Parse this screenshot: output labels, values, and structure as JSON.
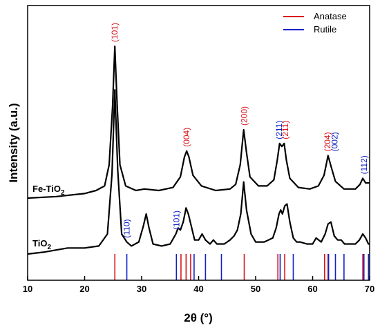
{
  "chart_data": {
    "type": "line",
    "xlabel": "2θ (°)",
    "ylabel": "Intensity (a.u.)",
    "xlim": [
      10,
      70
    ],
    "xticks": [
      "10",
      "20",
      "30",
      "40",
      "50",
      "60",
      "70"
    ],
    "y_ticks": "none",
    "grid": false,
    "legend_position": "top-right",
    "colors": {
      "anatase": "#d8141c",
      "rutile": "#1020c8",
      "curve": "#000000"
    },
    "series": [
      {
        "name": "Fe-TiO2",
        "x": [
          10,
          15,
          20,
          22,
          23.5,
          24.3,
          24.9,
          25.3,
          25.7,
          26.2,
          27.2,
          29,
          30.5,
          33,
          35.5,
          36.8,
          37.5,
          37.9,
          38.3,
          39,
          40.5,
          43,
          45.5,
          46.5,
          47.3,
          47.9,
          48.4,
          49,
          50.5,
          52,
          53.2,
          53.8,
          54.2,
          54.6,
          55.0,
          55.4,
          56,
          57.5,
          59.5,
          61,
          62,
          62.7,
          63.3,
          64,
          65.5,
          67.5,
          68.3,
          68.8,
          69.3,
          70
        ],
        "y": [
          0.0,
          0.01,
          0.03,
          0.05,
          0.08,
          0.22,
          0.6,
          1.0,
          0.62,
          0.22,
          0.08,
          0.05,
          0.06,
          0.05,
          0.07,
          0.14,
          0.27,
          0.31,
          0.27,
          0.15,
          0.08,
          0.05,
          0.06,
          0.09,
          0.22,
          0.45,
          0.3,
          0.14,
          0.08,
          0.08,
          0.12,
          0.25,
          0.36,
          0.34,
          0.36,
          0.25,
          0.13,
          0.07,
          0.06,
          0.08,
          0.15,
          0.28,
          0.2,
          0.11,
          0.06,
          0.06,
          0.09,
          0.13,
          0.1,
          0.1
        ]
      },
      {
        "name": "TiO2",
        "x": [
          10,
          13,
          17,
          20,
          22.5,
          24,
          24.8,
          25.3,
          25.8,
          26.5,
          27.4,
          28.2,
          29.5,
          30.3,
          30.8,
          31.3,
          32,
          33.5,
          35,
          36,
          36.4,
          36.8,
          37.3,
          37.8,
          38.2,
          38.7,
          39.3,
          40,
          40.6,
          41.2,
          42,
          42.6,
          43.2,
          44.5,
          45.5,
          46.2,
          46.8,
          47.4,
          47.9,
          48.4,
          49.2,
          50,
          51.5,
          53,
          53.6,
          54.1,
          54.4,
          54.7,
          55.1,
          55.5,
          56,
          56.6,
          57.2,
          57.8,
          59,
          60,
          60.6,
          61.5,
          62.2,
          62.7,
          63.2,
          63.8,
          64.4,
          65,
          65.6,
          66.5,
          67.5,
          68.2,
          68.8,
          69.3,
          69.8,
          70
        ],
        "y": [
          0.0,
          0.01,
          0.03,
          0.03,
          0.04,
          0.1,
          0.4,
          0.82,
          0.42,
          0.1,
          0.06,
          0.04,
          0.06,
          0.14,
          0.2,
          0.13,
          0.05,
          0.04,
          0.05,
          0.1,
          0.13,
          0.12,
          0.16,
          0.23,
          0.2,
          0.14,
          0.07,
          0.07,
          0.1,
          0.07,
          0.05,
          0.07,
          0.05,
          0.05,
          0.07,
          0.09,
          0.12,
          0.2,
          0.36,
          0.22,
          0.1,
          0.06,
          0.06,
          0.08,
          0.13,
          0.2,
          0.22,
          0.2,
          0.24,
          0.25,
          0.16,
          0.08,
          0.06,
          0.06,
          0.05,
          0.05,
          0.08,
          0.06,
          0.1,
          0.15,
          0.16,
          0.09,
          0.07,
          0.07,
          0.05,
          0.05,
          0.05,
          0.07,
          0.1,
          0.08,
          0.05,
          0.05
        ]
      }
    ],
    "sample_labels": [
      {
        "text": "Fe-TiO",
        "sub": "2",
        "series": "Fe-TiO2"
      },
      {
        "text": "TiO",
        "sub": "2",
        "series": "TiO2"
      }
    ],
    "legend": [
      {
        "label": "Anatase",
        "color": "#d8141c"
      },
      {
        "label": "Rutile",
        "color": "#1020c8"
      }
    ],
    "peak_labels": [
      {
        "text": "(101)",
        "x": 25.3,
        "color": "#d8141c",
        "series": "Fe-TiO2",
        "y": 1.0
      },
      {
        "text": "(004)",
        "x": 37.9,
        "color": "#d8141c",
        "series": "Fe-TiO2",
        "y": 0.31
      },
      {
        "text": "(200)",
        "x": 48.0,
        "color": "#d8141c",
        "series": "Fe-TiO2",
        "y": 0.45
      },
      {
        "text": "(211)",
        "x": 54.1,
        "color": "#1020c8",
        "series": "Fe-TiO2",
        "y": 0.36
      },
      {
        "text": "(211)",
        "x": 55.2,
        "color": "#d8141c",
        "series": "Fe-TiO2",
        "y": 0.36
      },
      {
        "text": "(204)",
        "x": 62.6,
        "color": "#d8141c",
        "series": "Fe-TiO2",
        "y": 0.28
      },
      {
        "text": "(002)",
        "x": 63.9,
        "color": "#1020c8",
        "series": "Fe-TiO2",
        "y": 0.28
      },
      {
        "text": "(112)",
        "x": 69.0,
        "color": "#1020c8",
        "series": "Fe-TiO2",
        "y": 0.13
      },
      {
        "text": "(110)",
        "x": 27.4,
        "color": "#1020c8",
        "series": "TiO2",
        "y": 0.06
      },
      {
        "text": "(101)",
        "x": 36.1,
        "color": "#1020c8",
        "series": "TiO2",
        "y": 0.1
      }
    ],
    "reference_lines": {
      "anatase": [
        25.3,
        36.9,
        37.8,
        38.6,
        48.0,
        53.9,
        55.1,
        62.1,
        62.7,
        68.8,
        70.3
      ],
      "rutile": [
        27.4,
        36.1,
        39.2,
        41.2,
        44.0,
        54.3,
        56.6,
        62.8,
        64.0,
        65.5,
        69.0,
        69.8
      ]
    }
  }
}
